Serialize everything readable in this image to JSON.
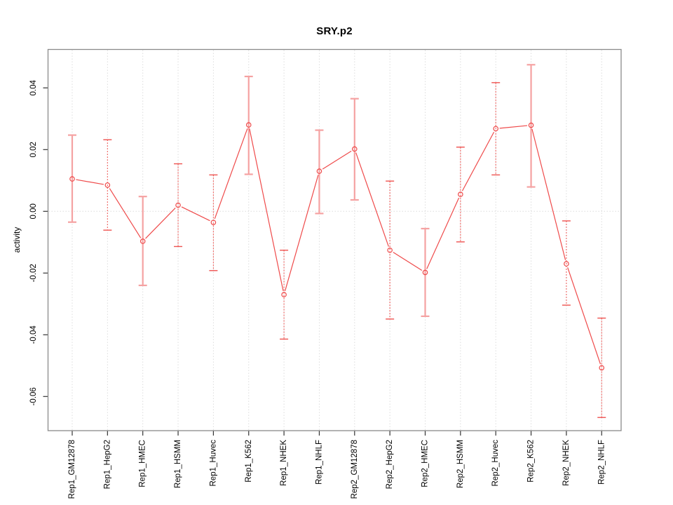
{
  "page": {
    "background": "#ffffff"
  },
  "chart_data": {
    "type": "line",
    "title": "SRY.p2",
    "xlabel": "",
    "ylabel": "activity",
    "legend_position": "none",
    "grid": {
      "vertical": "dotted light-gray line at every category tick",
      "horizontal": "dotted light-gray line at y = 0 only"
    },
    "marker": "open-circle",
    "line_between_points": true,
    "error_bars": true,
    "ylim": [
      -0.0706,
      0.0529
    ],
    "yticks": [
      {
        "label": "0.04",
        "value": 0.04
      },
      {
        "label": "0.02",
        "value": 0.02
      },
      {
        "label": "0.00",
        "value": 0.0
      },
      {
        "label": "-0.02",
        "value": -0.02
      },
      {
        "label": "-0.04",
        "value": -0.04
      },
      {
        "label": "-0.06",
        "value": -0.06
      }
    ],
    "colors": {
      "series": "#ef4a4a",
      "error_bar_solid": "#f5a2a2",
      "error_bar_dotted": "#ef5350",
      "gridline": "#dcdcdc",
      "box": "#8a8a8a",
      "tick": "#333333",
      "text": "#000000"
    },
    "categories": [
      "Rep1_GM12878",
      "Rep1_HepG2",
      "Rep1_HMEC",
      "Rep1_HSMM",
      "Rep1_Huvec",
      "Rep1_K562",
      "Rep1_NHEK",
      "Rep1_NHLF",
      "Rep2_GM12878",
      "Rep2_HepG2",
      "Rep2_HMEC",
      "Rep2_HSMM",
      "Rep2_Huvec",
      "Rep2_K562",
      "Rep2_NHEK",
      "Rep2_NHLF"
    ],
    "points": [
      {
        "category": "Rep1_GM12878",
        "value": 0.0105,
        "lower": -0.0035,
        "upper": 0.0247,
        "error_bar_style": "solid"
      },
      {
        "category": "Rep1_HepG2",
        "value": 0.0085,
        "lower": -0.0061,
        "upper": 0.0232,
        "error_bar_style": "dotted"
      },
      {
        "category": "Rep1_HMEC",
        "value": -0.0097,
        "lower": -0.024,
        "upper": 0.0048,
        "error_bar_style": "solid"
      },
      {
        "category": "Rep1_HSMM",
        "value": 0.002,
        "lower": -0.0114,
        "upper": 0.0154,
        "error_bar_style": "dotted"
      },
      {
        "category": "Rep1_Huvec",
        "value": -0.0036,
        "lower": -0.0192,
        "upper": 0.0118,
        "error_bar_style": "dotted"
      },
      {
        "category": "Rep1_K562",
        "value": 0.028,
        "lower": 0.012,
        "upper": 0.0437,
        "error_bar_style": "solid"
      },
      {
        "category": "Rep1_NHEK",
        "value": -0.027,
        "lower": -0.0414,
        "upper": -0.0126,
        "error_bar_style": "dotted"
      },
      {
        "category": "Rep1_NHLF",
        "value": 0.013,
        "lower": -0.0007,
        "upper": 0.0263,
        "error_bar_style": "solid"
      },
      {
        "category": "Rep2_GM12878",
        "value": 0.0202,
        "lower": 0.0037,
        "upper": 0.0365,
        "error_bar_style": "solid"
      },
      {
        "category": "Rep2_HepG2",
        "value": -0.0126,
        "lower": -0.0349,
        "upper": 0.0098,
        "error_bar_style": "dotted"
      },
      {
        "category": "Rep2_HMEC",
        "value": -0.0198,
        "lower": -0.034,
        "upper": -0.0056,
        "error_bar_style": "solid"
      },
      {
        "category": "Rep2_HSMM",
        "value": 0.0055,
        "lower": -0.0099,
        "upper": 0.0208,
        "error_bar_style": "dotted"
      },
      {
        "category": "Rep2_Huvec",
        "value": 0.0268,
        "lower": 0.0118,
        "upper": 0.0417,
        "error_bar_style": "dotted"
      },
      {
        "category": "Rep2_K562",
        "value": 0.0279,
        "lower": 0.0079,
        "upper": 0.0475,
        "error_bar_style": "solid"
      },
      {
        "category": "Rep2_NHEK",
        "value": -0.017,
        "lower": -0.0304,
        "upper": -0.0031,
        "error_bar_style": "dotted"
      },
      {
        "category": "Rep2_NHLF",
        "value": -0.0507,
        "lower": -0.0668,
        "upper": -0.0346,
        "error_bar_style": "dotted"
      }
    ]
  }
}
